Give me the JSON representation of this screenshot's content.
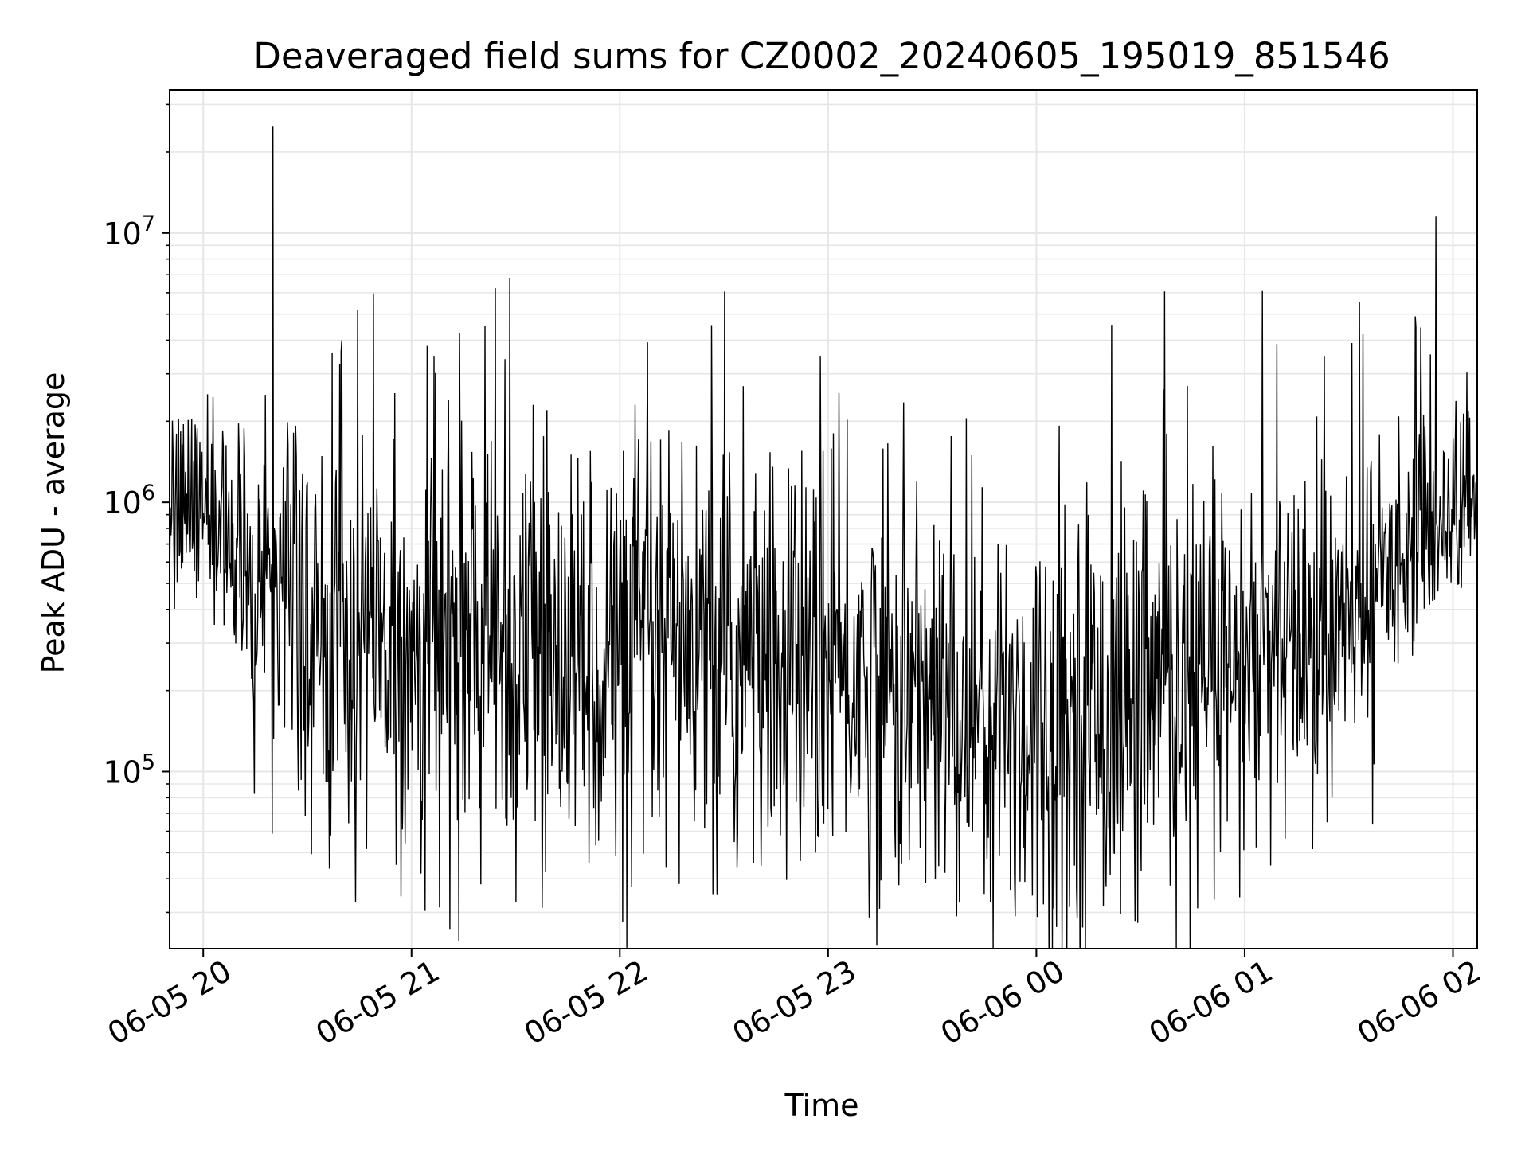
{
  "chart_data": {
    "type": "line",
    "title": "Deaveraged field sums for CZ0002_20240605_195019_851546",
    "xlabel": "Time",
    "ylabel": "Peak ADU - average",
    "yscale": "log",
    "xlim": [
      "2024-06-05 19:50:19",
      "2024-06-06 02:07:00"
    ],
    "ylim": [
      22000,
      34000000
    ],
    "grid": true,
    "line_color": "#000000",
    "grid_color": "#e6e6e6",
    "x_ticks": [
      {
        "t": "2024-06-05 20:00:00",
        "label": "06-05 20"
      },
      {
        "t": "2024-06-05 21:00:00",
        "label": "06-05 21"
      },
      {
        "t": "2024-06-05 22:00:00",
        "label": "06-05 22"
      },
      {
        "t": "2024-06-05 23:00:00",
        "label": "06-05 23"
      },
      {
        "t": "2024-06-06 00:00:00",
        "label": "06-06 00"
      },
      {
        "t": "2024-06-06 01:00:00",
        "label": "06-06 01"
      },
      {
        "t": "2024-06-06 02:00:00",
        "label": "06-06 02"
      }
    ],
    "y_ticks": [
      {
        "value": 100000,
        "base": "10",
        "exp": "5"
      },
      {
        "value": 1000000,
        "base": "10",
        "exp": "6"
      },
      {
        "value": 10000000,
        "base": "10",
        "exp": "7"
      }
    ],
    "series": [
      {
        "envelope": [
          {
            "t": "2024-06-05 19:50",
            "median": 1000000,
            "spread": 0.18
          },
          {
            "t": "2024-06-05 20:05",
            "median": 850000,
            "spread": 0.2
          },
          {
            "t": "2024-06-05 20:15",
            "median": 500000,
            "spread": 0.32
          },
          {
            "t": "2024-06-05 20:30",
            "median": 340000,
            "spread": 0.36
          },
          {
            "t": "2024-06-05 21:00",
            "median": 290000,
            "spread": 0.4
          },
          {
            "t": "2024-06-05 22:00",
            "median": 260000,
            "spread": 0.42
          },
          {
            "t": "2024-06-05 23:00",
            "median": 235000,
            "spread": 0.38
          },
          {
            "t": "2024-06-05 23:30",
            "median": 185000,
            "spread": 0.38
          },
          {
            "t": "2024-06-06 00:00",
            "median": 150000,
            "spread": 0.42
          },
          {
            "t": "2024-06-06 00:30",
            "median": 175000,
            "spread": 0.4
          },
          {
            "t": "2024-06-06 01:00",
            "median": 230000,
            "spread": 0.38
          },
          {
            "t": "2024-06-06 01:15",
            "median": 280000,
            "spread": 0.34
          },
          {
            "t": "2024-06-06 01:30",
            "median": 330000,
            "spread": 0.3
          },
          {
            "t": "2024-06-06 01:45",
            "median": 700000,
            "spread": 0.2
          },
          {
            "t": "2024-06-06 02:07",
            "median": 1050000,
            "spread": 0.18
          }
        ],
        "peaks": [
          {
            "t": "2024-06-05 20:20:00",
            "value": 25000000
          },
          {
            "t": "2024-06-05 20:40:00",
            "value": 4000000
          },
          {
            "t": "2024-06-05 20:44:30",
            "value": 5200000
          },
          {
            "t": "2024-06-05 21:06:30",
            "value": 3500000
          },
          {
            "t": "2024-06-05 21:27:00",
            "value": 3400000
          },
          {
            "t": "2024-06-05 21:35:00",
            "value": 2300000
          },
          {
            "t": "2024-06-05 22:04:30",
            "value": 2300000
          },
          {
            "t": "2024-06-05 22:35:30",
            "value": 2700000
          },
          {
            "t": "2024-06-05 22:58:30",
            "value": 1550000
          },
          {
            "t": "2024-06-06 01:23:00",
            "value": 3500000
          },
          {
            "t": "2024-06-06 01:55:00",
            "value": 11500000
          }
        ],
        "dips": [
          {
            "t": "2024-06-05 20:27:30",
            "value": 85000
          },
          {
            "t": "2024-06-05 20:55:30",
            "value": 45000
          },
          {
            "t": "2024-06-05 22:28:00",
            "value": 35000
          },
          {
            "t": "2024-06-05 23:37:00",
            "value": 29000
          },
          {
            "t": "2024-06-05 23:54:00",
            "value": 29000
          },
          {
            "t": "2024-06-06 00:05:00",
            "value": 31000
          }
        ]
      }
    ]
  }
}
